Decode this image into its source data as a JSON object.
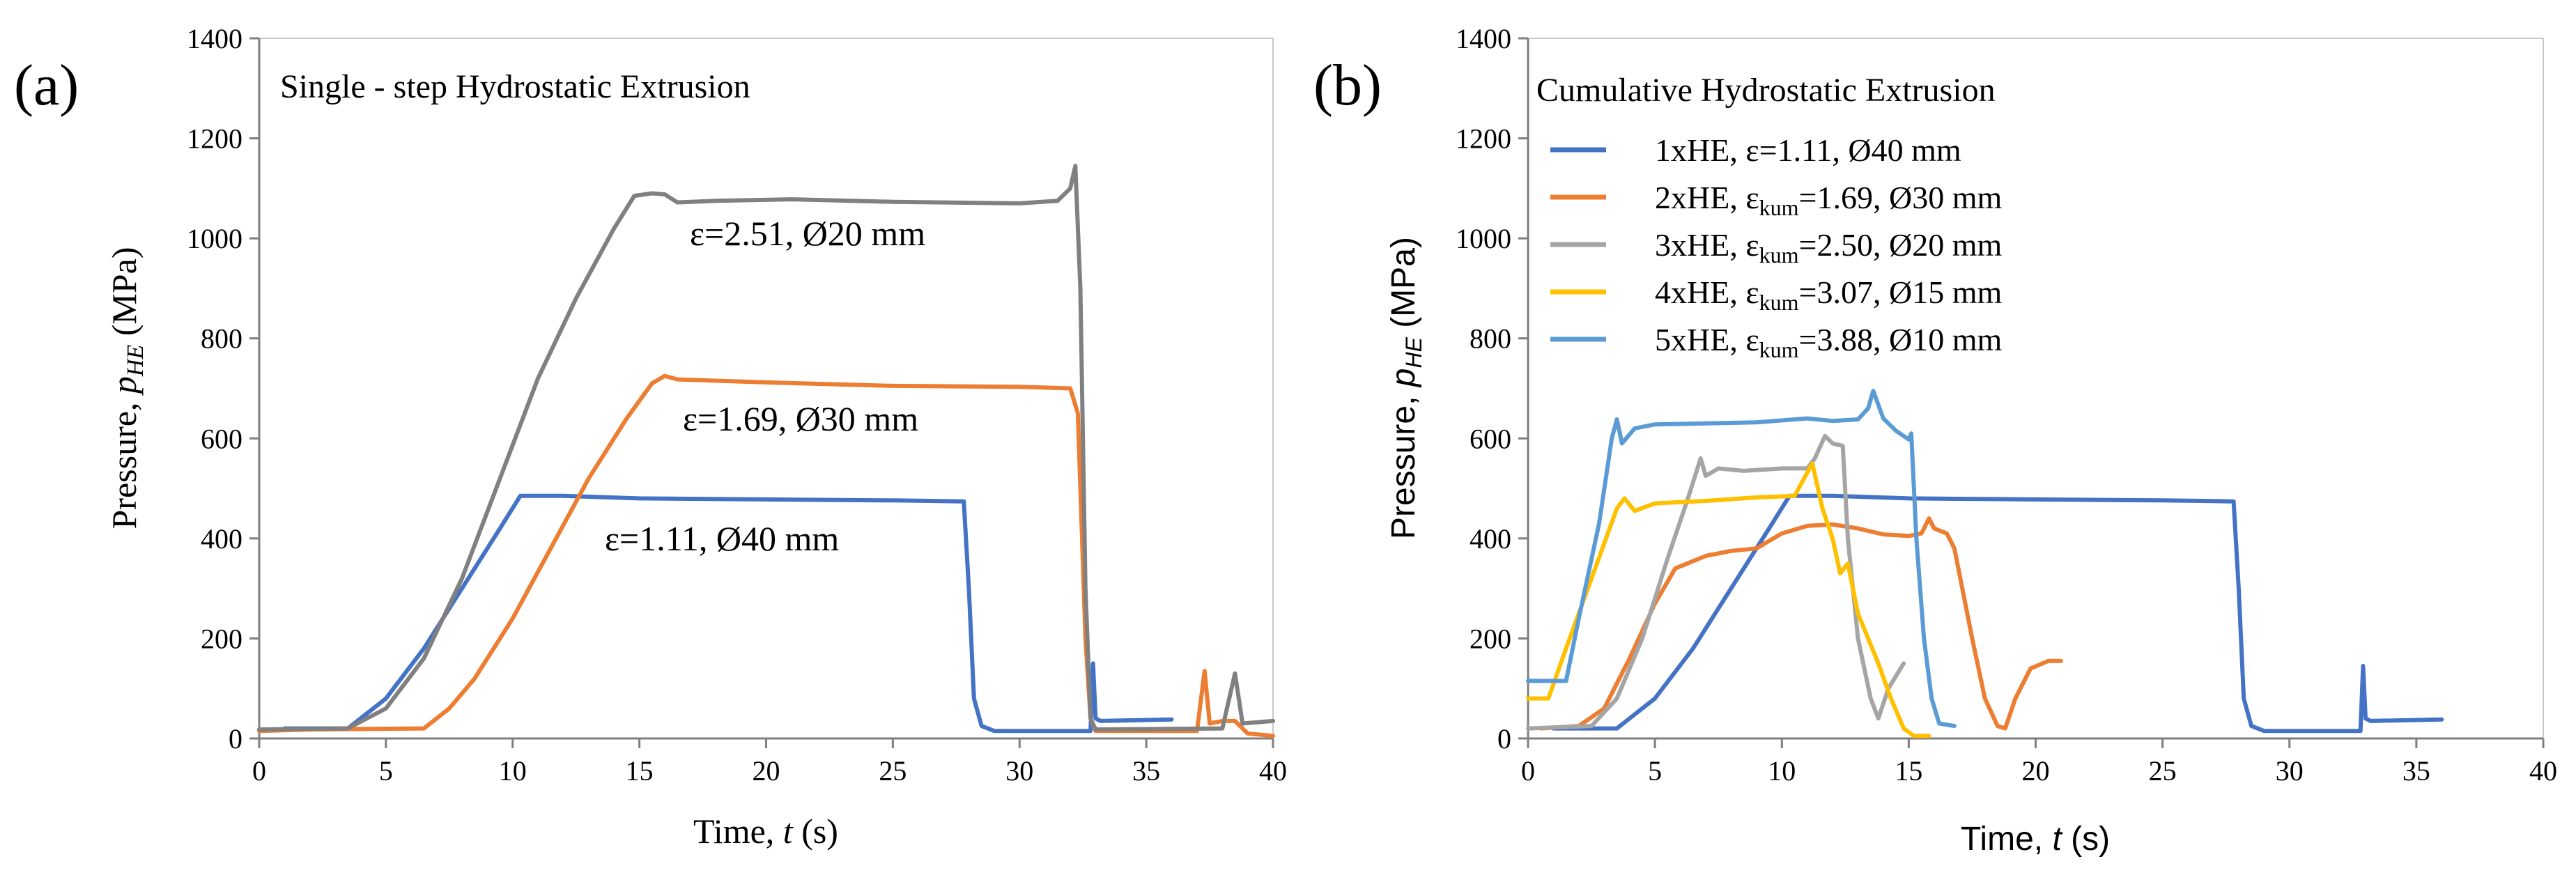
{
  "figure": {
    "panel_a_label": "(a)",
    "panel_b_label": "(b)"
  },
  "chart_data": [
    {
      "type": "line",
      "title": "Single - step Hydrostatic Extrusion",
      "xlabel": "Time, t (s)",
      "ylabel": "Pressure, pHE (MPa)",
      "xlim": [
        0,
        40
      ],
      "ylim": [
        0,
        1400
      ],
      "xticks": [
        0,
        5,
        10,
        15,
        20,
        25,
        30,
        35,
        40
      ],
      "yticks": [
        0,
        200,
        400,
        600,
        800,
        1000,
        1200,
        1400
      ],
      "grid": false,
      "series": [
        {
          "name": "ε=1.11, Ø40 mm",
          "color": "#4472C4",
          "points": [
            [
              1,
              20
            ],
            [
              3.5,
              20
            ],
            [
              5,
              80
            ],
            [
              6.5,
              180
            ],
            [
              8,
              300
            ],
            [
              9.5,
              420
            ],
            [
              10.3,
              485
            ],
            [
              12,
              485
            ],
            [
              15,
              480
            ],
            [
              20,
              478
            ],
            [
              25,
              476
            ],
            [
              27.8,
              474
            ],
            [
              28,
              300
            ],
            [
              28.2,
              80
            ],
            [
              28.5,
              25
            ],
            [
              29,
              15
            ],
            [
              32.8,
              15
            ],
            [
              32.9,
              150
            ],
            [
              33,
              40
            ],
            [
              33.2,
              35
            ],
            [
              36,
              38
            ]
          ]
        },
        {
          "name": "ε=1.69, Ø30 mm",
          "color": "#ED7D31",
          "points": [
            [
              0,
              15
            ],
            [
              2,
              18
            ],
            [
              6.5,
              20
            ],
            [
              7.5,
              60
            ],
            [
              8.5,
              120
            ],
            [
              10,
              240
            ],
            [
              11.5,
              380
            ],
            [
              13,
              520
            ],
            [
              14.5,
              640
            ],
            [
              15.5,
              710
            ],
            [
              16,
              725
            ],
            [
              16.5,
              718
            ],
            [
              20,
              712
            ],
            [
              25,
              705
            ],
            [
              30,
              703
            ],
            [
              32,
              700
            ],
            [
              32.3,
              650
            ],
            [
              32.6,
              200
            ],
            [
              32.8,
              40
            ],
            [
              33,
              15
            ],
            [
              37,
              15
            ],
            [
              37.3,
              135
            ],
            [
              37.5,
              30
            ],
            [
              38,
              35
            ],
            [
              38.5,
              35
            ],
            [
              39,
              10
            ],
            [
              40,
              5
            ]
          ]
        },
        {
          "name": "ε=2.51, Ø20 mm",
          "color": "#808080",
          "points": [
            [
              0,
              18
            ],
            [
              3.5,
              20
            ],
            [
              5,
              60
            ],
            [
              6.5,
              160
            ],
            [
              8,
              320
            ],
            [
              9.5,
              520
            ],
            [
              11,
              720
            ],
            [
              12.5,
              880
            ],
            [
              14,
              1020
            ],
            [
              14.8,
              1085
            ],
            [
              15.5,
              1090
            ],
            [
              16,
              1088
            ],
            [
              16.5,
              1072
            ],
            [
              18,
              1075
            ],
            [
              21,
              1078
            ],
            [
              25,
              1073
            ],
            [
              30,
              1070
            ],
            [
              31.5,
              1075
            ],
            [
              32,
              1100
            ],
            [
              32.2,
              1145
            ],
            [
              32.4,
              900
            ],
            [
              32.6,
              300
            ],
            [
              32.8,
              40
            ],
            [
              33,
              18
            ],
            [
              38,
              20
            ],
            [
              38.5,
              130
            ],
            [
              38.8,
              30
            ],
            [
              40,
              35
            ]
          ]
        }
      ],
      "annotations": [
        "ε=2.51, Ø20 mm",
        "ε=1.69, Ø30 mm",
        "ε=1.11, Ø40 mm"
      ]
    },
    {
      "type": "line",
      "title": "Cumulative Hydrostatic Extrusion",
      "xlabel": "Time, t (s)",
      "ylabel": "Pressure, pHE (MPa)",
      "xlim": [
        0,
        40
      ],
      "ylim": [
        0,
        1400
      ],
      "xticks": [
        0,
        5,
        10,
        15,
        20,
        25,
        30,
        35,
        40
      ],
      "yticks": [
        0,
        200,
        400,
        600,
        800,
        1000,
        1200,
        1400
      ],
      "grid": false,
      "legend_position": "top-left",
      "series": [
        {
          "name": "1xHE, ε=1.11, Ø40 mm",
          "legend_prefix": "1xHE, ε=1.11, Ø40 mm",
          "color": "#4472C4",
          "points": [
            [
              1,
              20
            ],
            [
              3.5,
              20
            ],
            [
              5,
              80
            ],
            [
              6.5,
              180
            ],
            [
              8,
              300
            ],
            [
              9.5,
              420
            ],
            [
              10.3,
              485
            ],
            [
              12,
              485
            ],
            [
              15,
              480
            ],
            [
              20,
              478
            ],
            [
              25,
              476
            ],
            [
              27.8,
              474
            ],
            [
              28,
              300
            ],
            [
              28.2,
              80
            ],
            [
              28.5,
              25
            ],
            [
              29,
              15
            ],
            [
              32.8,
              15
            ],
            [
              32.9,
              145
            ],
            [
              33,
              40
            ],
            [
              33.2,
              35
            ],
            [
              36,
              38
            ]
          ]
        },
        {
          "name": "2xHE, εkum=1.69, Ø30 mm",
          "legend_prefix": "2xHE, ε",
          "legend_sub": "kum",
          "legend_suffix": "=1.69, Ø30 mm",
          "color": "#ED7D31",
          "points": [
            [
              0.5,
              20
            ],
            [
              2,
              25
            ],
            [
              3,
              60
            ],
            [
              4,
              160
            ],
            [
              5,
              270
            ],
            [
              5.8,
              340
            ],
            [
              7,
              365
            ],
            [
              8,
              375
            ],
            [
              9,
              380
            ],
            [
              10,
              410
            ],
            [
              11,
              425
            ],
            [
              12,
              428
            ],
            [
              13,
              420
            ],
            [
              14,
              408
            ],
            [
              15,
              405
            ],
            [
              15.5,
              410
            ],
            [
              15.8,
              440
            ],
            [
              16,
              420
            ],
            [
              16.5,
              410
            ],
            [
              16.8,
              380
            ],
            [
              17.5,
              200
            ],
            [
              18,
              80
            ],
            [
              18.5,
              25
            ],
            [
              18.8,
              20
            ],
            [
              19.2,
              80
            ],
            [
              19.8,
              140
            ],
            [
              20.5,
              155
            ],
            [
              21,
              155
            ]
          ]
        },
        {
          "name": "3xHE, εkum=2.50, Ø20 mm",
          "legend_prefix": "3xHE, ε",
          "legend_sub": "kum",
          "legend_suffix": "=2.50, Ø20 mm",
          "color": "#A5A5A5",
          "points": [
            [
              0,
              20
            ],
            [
              2.5,
              25
            ],
            [
              3.5,
              80
            ],
            [
              4.5,
              200
            ],
            [
              5.5,
              360
            ],
            [
              6.3,
              480
            ],
            [
              6.8,
              560
            ],
            [
              7,
              525
            ],
            [
              7.5,
              540
            ],
            [
              8.5,
              535
            ],
            [
              10,
              540
            ],
            [
              11,
              540
            ],
            [
              11.3,
              560
            ],
            [
              11.7,
              605
            ],
            [
              12,
              590
            ],
            [
              12.4,
              585
            ],
            [
              12.6,
              400
            ],
            [
              13,
              200
            ],
            [
              13.5,
              80
            ],
            [
              13.8,
              40
            ],
            [
              14.2,
              100
            ],
            [
              14.8,
              150
            ]
          ]
        },
        {
          "name": "4xHE, εkum=3.07, Ø15 mm",
          "legend_prefix": "4xHE, ε",
          "legend_sub": "kum",
          "legend_suffix": "=3.07, Ø15 mm",
          "color": "#FFC000",
          "points": [
            [
              0,
              80
            ],
            [
              0.8,
              80
            ],
            [
              1.5,
              180
            ],
            [
              2.5,
              320
            ],
            [
              3.5,
              460
            ],
            [
              3.8,
              480
            ],
            [
              4.2,
              455
            ],
            [
              5,
              470
            ],
            [
              7,
              475
            ],
            [
              9,
              482
            ],
            [
              10.5,
              485
            ],
            [
              11.2,
              550
            ],
            [
              11.6,
              460
            ],
            [
              12,
              400
            ],
            [
              12.3,
              330
            ],
            [
              12.6,
              350
            ],
            [
              13,
              250
            ],
            [
              13.8,
              150
            ],
            [
              14.3,
              80
            ],
            [
              14.8,
              20
            ],
            [
              15.2,
              5
            ],
            [
              15.8,
              5
            ]
          ]
        },
        {
          "name": "5xHE, εkum=3.88, Ø10 mm",
          "legend_prefix": "5xHE, ε",
          "legend_sub": "kum",
          "legend_suffix": "=3.88, Ø10 mm",
          "color": "#5B9BD5",
          "points": [
            [
              0,
              115
            ],
            [
              1.5,
              115
            ],
            [
              2,
              240
            ],
            [
              2.8,
              430
            ],
            [
              3.3,
              600
            ],
            [
              3.5,
              638
            ],
            [
              3.7,
              590
            ],
            [
              4.2,
              620
            ],
            [
              5,
              628
            ],
            [
              7,
              630
            ],
            [
              9,
              632
            ],
            [
              11,
              640
            ],
            [
              12,
              635
            ],
            [
              13,
              638
            ],
            [
              13.4,
              660
            ],
            [
              13.6,
              695
            ],
            [
              14,
              640
            ],
            [
              14.5,
              615
            ],
            [
              15,
              598
            ],
            [
              15.1,
              610
            ],
            [
              15.3,
              400
            ],
            [
              15.6,
              200
            ],
            [
              15.9,
              80
            ],
            [
              16.2,
              30
            ],
            [
              16.8,
              25
            ]
          ]
        }
      ]
    }
  ]
}
